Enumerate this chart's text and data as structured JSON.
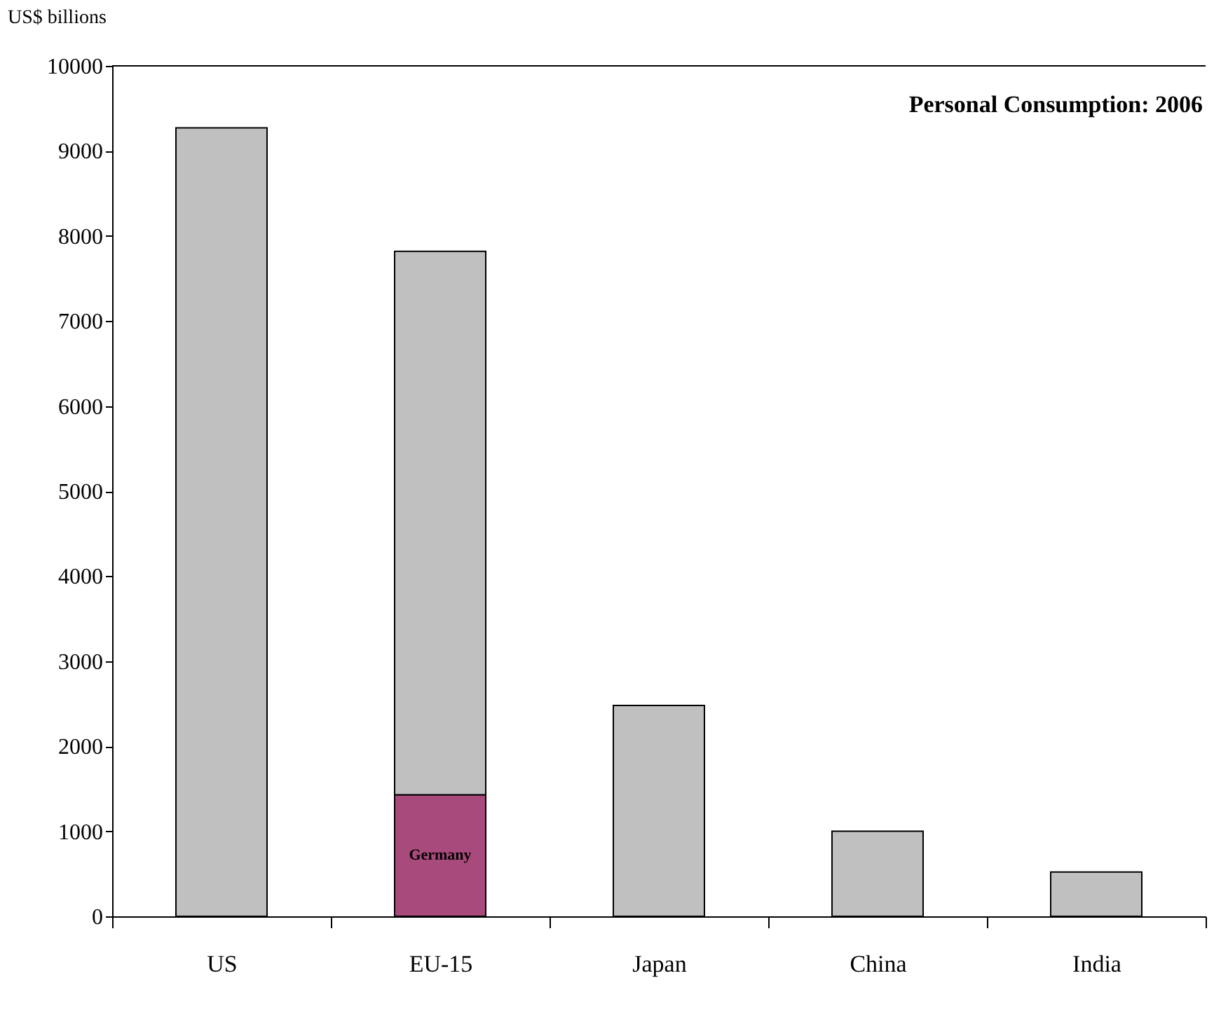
{
  "chart_data": {
    "type": "bar",
    "title": "Personal Consumption: 2006",
    "ylabel": "US$ billions",
    "categories": [
      "US",
      "EU-15",
      "Japan",
      "China",
      "India"
    ],
    "stacked": true,
    "series": [
      {
        "name": "Germany",
        "color": "#a94a7c",
        "values": [
          null,
          1430,
          null,
          null,
          null
        ]
      },
      {
        "color": "#c0c0c0",
        "values": [
          9270,
          6390,
          2480,
          1000,
          520
        ]
      }
    ],
    "ylim": [
      0,
      10000
    ],
    "yticks": [
      0,
      1000,
      2000,
      3000,
      4000,
      5000,
      6000,
      7000,
      8000,
      9000,
      10000
    ],
    "grid": false,
    "legend": false
  }
}
